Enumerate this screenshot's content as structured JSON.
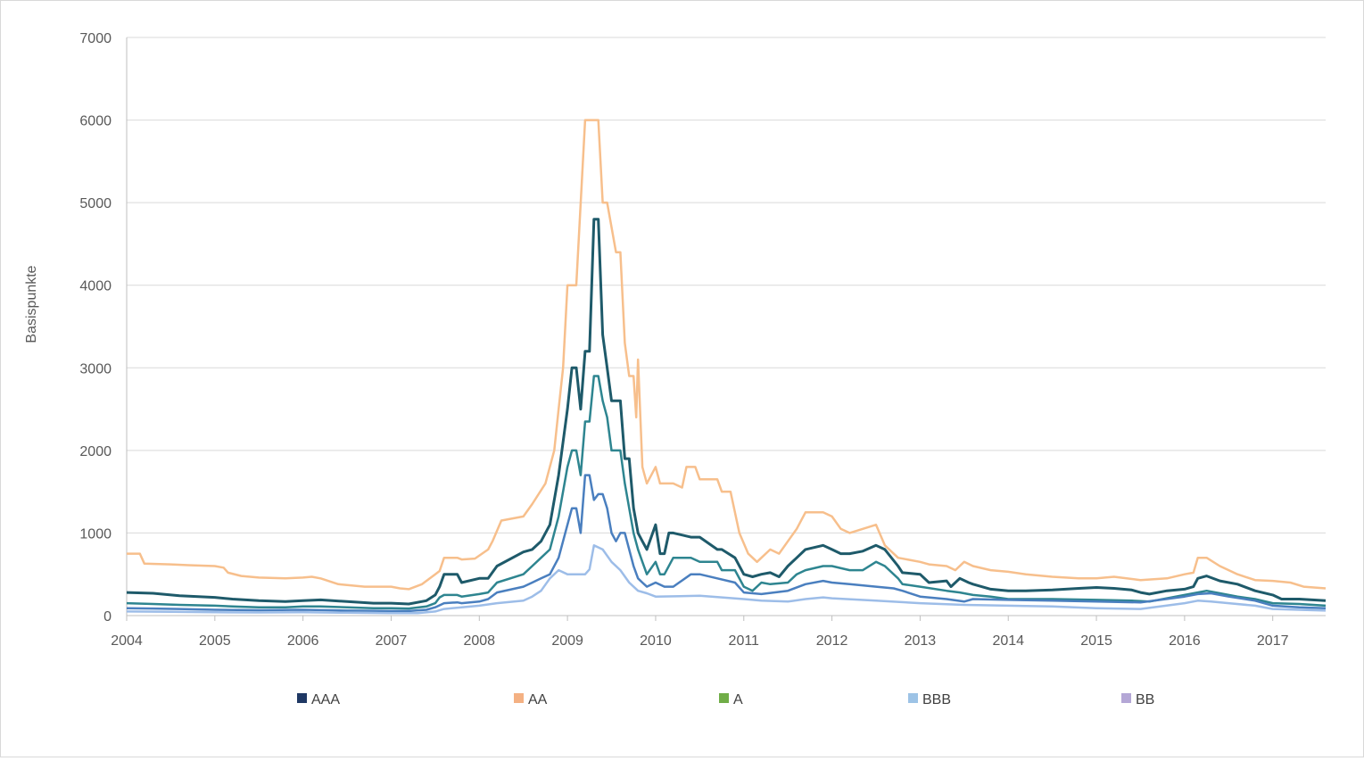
{
  "chart_data": {
    "type": "line",
    "title": "",
    "xlabel": "",
    "ylabel": "Basispunkte",
    "ylim": [
      0,
      7000
    ],
    "xlim": [
      2004.0,
      2017.6
    ],
    "y_ticks": [
      "0",
      "1000",
      "2000",
      "3000",
      "4000",
      "5000",
      "6000",
      "7000"
    ],
    "x_ticks": [
      "2004",
      "2005",
      "2006",
      "2007",
      "2008",
      "2009",
      "2010",
      "2011",
      "2012",
      "2013",
      "2014",
      "2015",
      "2016",
      "2017"
    ],
    "grid": "horizontal",
    "legend_position": "bottom",
    "legend": [
      {
        "label": "AAA",
        "color": "#1f3864"
      },
      {
        "label": "AA",
        "color": "#f4b183"
      },
      {
        "label": "A",
        "color": "#70ad47"
      },
      {
        "label": "BBB",
        "color": "#9dc3e6"
      },
      {
        "label": "BB",
        "color": "#b4a7d6"
      }
    ],
    "series": [
      {
        "color": "#f7bf8c",
        "x": [
          2004.0,
          2004.15,
          2004.2,
          2004.5,
          2004.7,
          2005.0,
          2005.1,
          2005.15,
          2005.3,
          2005.5,
          2005.8,
          2006.0,
          2006.1,
          2006.2,
          2006.4,
          2006.7,
          2007.0,
          2007.1,
          2007.2,
          2007.35,
          2007.5,
          2007.55,
          2007.6,
          2007.75,
          2007.8,
          2007.95,
          2008.1,
          2008.15,
          2008.25,
          2008.5,
          2008.6,
          2008.75,
          2008.85,
          2008.9,
          2008.95,
          2009.0,
          2009.1,
          2009.2,
          2009.25,
          2009.35,
          2009.4,
          2009.45,
          2009.55,
          2009.6,
          2009.65,
          2009.7,
          2009.75,
          2009.78,
          2009.8,
          2009.85,
          2009.9,
          2010.0,
          2010.05,
          2010.2,
          2010.3,
          2010.35,
          2010.45,
          2010.5,
          2010.7,
          2010.75,
          2010.85,
          2010.95,
          2011.05,
          2011.15,
          2011.2,
          2011.3,
          2011.4,
          2011.5,
          2011.6,
          2011.7,
          2011.9,
          2012.0,
          2012.1,
          2012.2,
          2012.35,
          2012.5,
          2012.6,
          2012.75,
          2013.0,
          2013.1,
          2013.3,
          2013.4,
          2013.5,
          2013.6,
          2013.8,
          2014.0,
          2014.2,
          2014.5,
          2014.8,
          2015.0,
          2015.2,
          2015.5,
          2015.8,
          2016.0,
          2016.1,
          2016.15,
          2016.25,
          2016.4,
          2016.6,
          2016.8,
          2017.0,
          2017.2,
          2017.35,
          2017.6
        ],
        "y": [
          750,
          750,
          630,
          620,
          610,
          600,
          580,
          520,
          480,
          460,
          450,
          460,
          470,
          450,
          380,
          350,
          350,
          330,
          320,
          380,
          500,
          540,
          700,
          700,
          680,
          690,
          800,
          900,
          1150,
          1200,
          1350,
          1600,
          2000,
          2500,
          3000,
          4000,
          4000,
          6000,
          6000,
          6000,
          5000,
          5000,
          4400,
          4400,
          3300,
          2900,
          2900,
          2400,
          3100,
          1800,
          1600,
          1800,
          1600,
          1600,
          1550,
          1800,
          1800,
          1650,
          1650,
          1500,
          1500,
          1000,
          750,
          650,
          700,
          800,
          750,
          900,
          1050,
          1250,
          1250,
          1200,
          1050,
          1000,
          1050,
          1100,
          850,
          700,
          650,
          620,
          600,
          550,
          650,
          600,
          550,
          530,
          500,
          470,
          450,
          450,
          470,
          430,
          450,
          500,
          520,
          700,
          700,
          600,
          500,
          430,
          420,
          400,
          350,
          330
        ]
      },
      {
        "color": "#1e5a6a",
        "x": [
          2004.0,
          2004.3,
          2004.6,
          2005.0,
          2005.2,
          2005.5,
          2005.8,
          2006.0,
          2006.2,
          2006.5,
          2006.8,
          2007.0,
          2007.2,
          2007.4,
          2007.5,
          2007.55,
          2007.6,
          2007.75,
          2007.8,
          2008.0,
          2008.1,
          2008.2,
          2008.5,
          2008.6,
          2008.7,
          2008.8,
          2008.9,
          2009.0,
          2009.05,
          2009.1,
          2009.15,
          2009.2,
          2009.25,
          2009.3,
          2009.35,
          2009.4,
          2009.45,
          2009.5,
          2009.55,
          2009.6,
          2009.65,
          2009.7,
          2009.75,
          2009.8,
          2009.85,
          2009.9,
          2010.0,
          2010.05,
          2010.1,
          2010.15,
          2010.2,
          2010.4,
          2010.5,
          2010.7,
          2010.75,
          2010.9,
          2011.0,
          2011.1,
          2011.2,
          2011.3,
          2011.4,
          2011.5,
          2011.6,
          2011.7,
          2011.9,
          2012.0,
          2012.1,
          2012.2,
          2012.35,
          2012.5,
          2012.6,
          2012.75,
          2012.8,
          2013.0,
          2013.1,
          2013.3,
          2013.35,
          2013.45,
          2013.55,
          2013.6,
          2013.8,
          2014.0,
          2014.2,
          2014.5,
          2014.8,
          2015.0,
          2015.2,
          2015.4,
          2015.5,
          2015.6,
          2015.8,
          2016.0,
          2016.1,
          2016.15,
          2016.25,
          2016.4,
          2016.6,
          2016.8,
          2017.0,
          2017.1,
          2017.3,
          2017.6
        ],
        "y": [
          280,
          270,
          240,
          220,
          200,
          180,
          170,
          180,
          190,
          170,
          150,
          150,
          140,
          180,
          250,
          350,
          500,
          500,
          400,
          450,
          450,
          600,
          770,
          800,
          900,
          1100,
          1700,
          2500,
          3000,
          3000,
          2500,
          3200,
          3200,
          4800,
          4800,
          3400,
          3000,
          2600,
          2600,
          2600,
          1900,
          1900,
          1300,
          1000,
          900,
          800,
          1100,
          750,
          750,
          1000,
          1000,
          950,
          950,
          800,
          800,
          700,
          500,
          470,
          500,
          520,
          470,
          600,
          700,
          800,
          850,
          800,
          750,
          750,
          780,
          850,
          800,
          600,
          520,
          500,
          400,
          420,
          350,
          450,
          400,
          380,
          320,
          300,
          300,
          310,
          330,
          340,
          330,
          310,
          280,
          260,
          300,
          320,
          350,
          450,
          480,
          420,
          380,
          300,
          250,
          200,
          200,
          180
        ]
      },
      {
        "color": "#2e8590",
        "x": [
          2004.0,
          2004.3,
          2004.6,
          2005.0,
          2005.2,
          2005.5,
          2005.8,
          2006.0,
          2006.2,
          2006.5,
          2006.8,
          2007.0,
          2007.2,
          2007.4,
          2007.5,
          2007.55,
          2007.6,
          2007.75,
          2007.8,
          2008.0,
          2008.1,
          2008.2,
          2008.5,
          2008.6,
          2008.7,
          2008.8,
          2008.9,
          2009.0,
          2009.05,
          2009.1,
          2009.15,
          2009.2,
          2009.25,
          2009.3,
          2009.35,
          2009.4,
          2009.45,
          2009.5,
          2009.6,
          2009.65,
          2009.7,
          2009.75,
          2009.8,
          2009.85,
          2009.9,
          2010.0,
          2010.05,
          2010.1,
          2010.2,
          2010.4,
          2010.5,
          2010.7,
          2010.75,
          2010.9,
          2011.0,
          2011.1,
          2011.2,
          2011.3,
          2011.5,
          2011.6,
          2011.7,
          2011.9,
          2012.0,
          2012.2,
          2012.35,
          2012.5,
          2012.6,
          2012.75,
          2012.8,
          2013.0,
          2013.3,
          2013.45,
          2013.6,
          2013.8,
          2014.0,
          2014.5,
          2015.0,
          2015.4,
          2015.6,
          2016.0,
          2016.15,
          2016.25,
          2016.4,
          2016.6,
          2016.8,
          2017.0,
          2017.3,
          2017.6
        ],
        "y": [
          150,
          140,
          130,
          120,
          110,
          100,
          100,
          110,
          110,
          100,
          90,
          90,
          85,
          110,
          150,
          220,
          250,
          250,
          230,
          260,
          280,
          400,
          500,
          600,
          700,
          800,
          1200,
          1800,
          2000,
          2000,
          1700,
          2350,
          2350,
          2900,
          2900,
          2600,
          2400,
          2000,
          2000,
          1600,
          1300,
          1000,
          800,
          650,
          500,
          650,
          500,
          500,
          700,
          700,
          650,
          650,
          550,
          550,
          350,
          300,
          400,
          380,
          400,
          500,
          550,
          600,
          600,
          550,
          550,
          650,
          600,
          450,
          380,
          350,
          300,
          280,
          250,
          230,
          200,
          200,
          190,
          180,
          170,
          250,
          280,
          300,
          270,
          230,
          200,
          150,
          140,
          120
        ]
      },
      {
        "color": "#4a7fbf",
        "x": [
          2004.0,
          2004.3,
          2004.6,
          2005.0,
          2005.5,
          2006.0,
          2006.5,
          2007.0,
          2007.2,
          2007.4,
          2007.5,
          2007.6,
          2007.75,
          2007.8,
          2008.0,
          2008.1,
          2008.2,
          2008.5,
          2008.6,
          2008.7,
          2008.8,
          2008.9,
          2009.0,
          2009.05,
          2009.1,
          2009.15,
          2009.2,
          2009.25,
          2009.3,
          2009.35,
          2009.4,
          2009.45,
          2009.5,
          2009.55,
          2009.6,
          2009.65,
          2009.7,
          2009.75,
          2009.8,
          2009.85,
          2009.9,
          2010.0,
          2010.1,
          2010.2,
          2010.4,
          2010.5,
          2010.7,
          2010.9,
          2011.0,
          2011.2,
          2011.5,
          2011.7,
          2011.9,
          2012.0,
          2012.2,
          2012.5,
          2012.7,
          2012.8,
          2013.0,
          2013.3,
          2013.5,
          2013.6,
          2014.0,
          2014.5,
          2015.0,
          2015.5,
          2016.0,
          2016.15,
          2016.3,
          2016.5,
          2016.8,
          2017.0,
          2017.3,
          2017.6
        ],
        "y": [
          90,
          85,
          80,
          70,
          65,
          70,
          60,
          55,
          55,
          70,
          100,
          150,
          160,
          150,
          170,
          200,
          280,
          350,
          400,
          450,
          500,
          700,
          1100,
          1300,
          1300,
          1000,
          1700,
          1700,
          1400,
          1470,
          1470,
          1300,
          1000,
          900,
          1000,
          1000,
          800,
          600,
          450,
          400,
          350,
          400,
          350,
          350,
          500,
          500,
          450,
          400,
          280,
          260,
          300,
          380,
          420,
          400,
          380,
          350,
          330,
          300,
          230,
          200,
          170,
          200,
          190,
          180,
          170,
          160,
          230,
          260,
          270,
          230,
          180,
          120,
          100,
          90
        ]
      },
      {
        "color": "#9dbde8",
        "x": [
          2004.0,
          2004.5,
          2005.0,
          2005.5,
          2006.0,
          2006.5,
          2007.0,
          2007.3,
          2007.5,
          2007.6,
          2007.8,
          2008.0,
          2008.2,
          2008.5,
          2008.6,
          2008.7,
          2008.8,
          2008.9,
          2009.0,
          2009.2,
          2009.25,
          2009.3,
          2009.4,
          2009.5,
          2009.6,
          2009.7,
          2009.8,
          2009.9,
          2010.0,
          2010.5,
          2011.0,
          2011.2,
          2011.5,
          2011.7,
          2011.9,
          2012.0,
          2012.5,
          2013.0,
          2013.5,
          2014.0,
          2014.5,
          2015.0,
          2015.5,
          2016.0,
          2016.15,
          2016.3,
          2016.5,
          2016.8,
          2017.0,
          2017.3,
          2017.6
        ],
        "y": [
          50,
          45,
          40,
          38,
          40,
          35,
          30,
          30,
          50,
          80,
          100,
          120,
          150,
          180,
          230,
          300,
          450,
          550,
          500,
          500,
          560,
          850,
          800,
          650,
          550,
          400,
          300,
          270,
          230,
          240,
          200,
          180,
          170,
          200,
          220,
          210,
          180,
          150,
          130,
          120,
          110,
          90,
          80,
          150,
          180,
          170,
          150,
          120,
          80,
          70,
          60
        ]
      }
    ]
  }
}
